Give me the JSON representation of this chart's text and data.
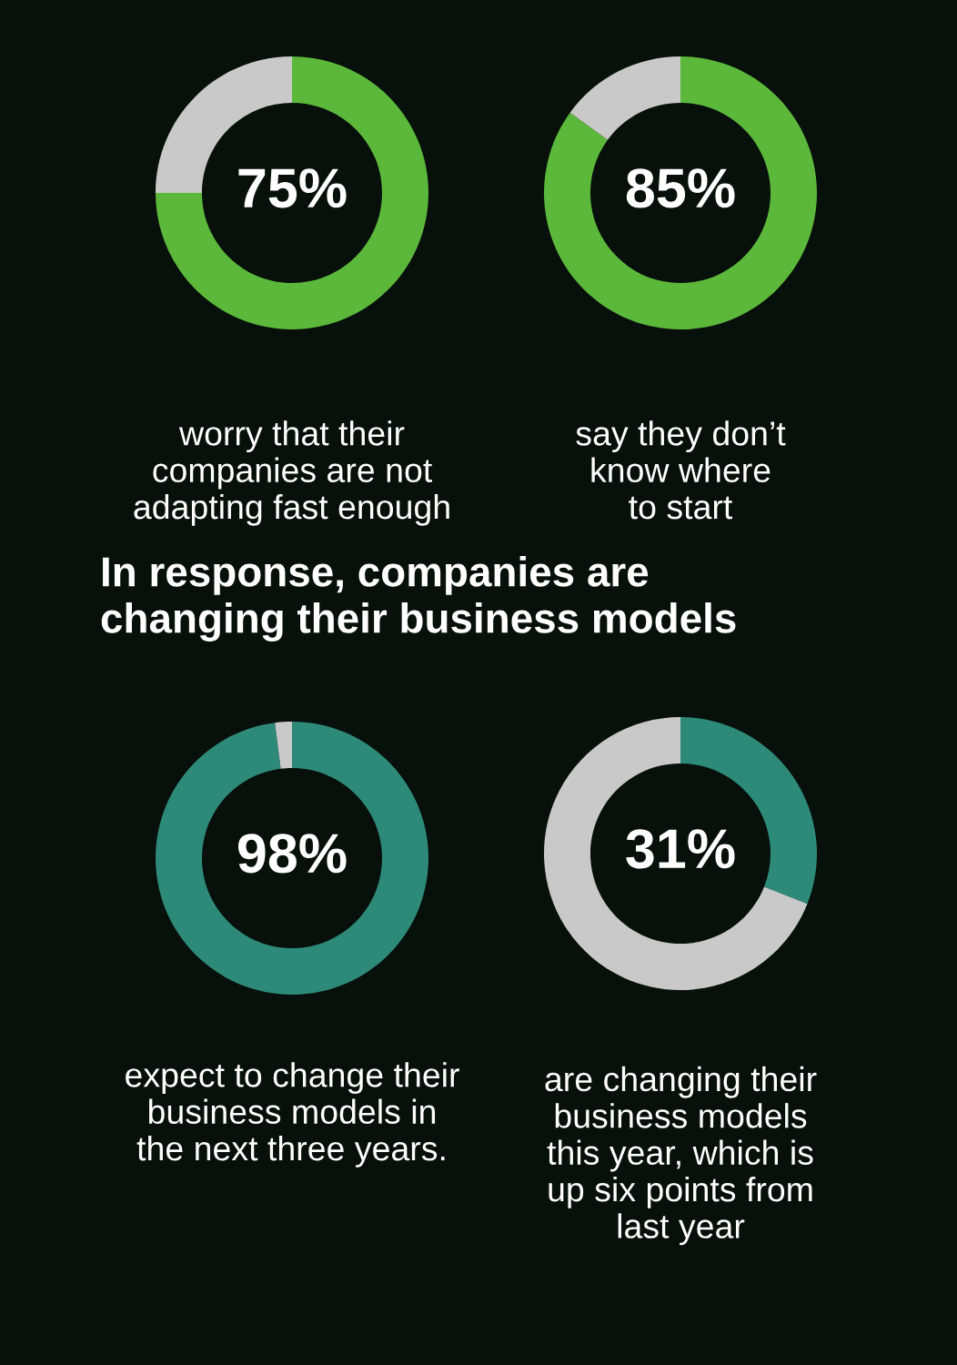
{
  "chart_data": [
    {
      "type": "donut",
      "categories": [
        null,
        null
      ],
      "values": [
        75,
        25
      ],
      "colors": [
        "#5cb83a",
        "#c9c9c9"
      ],
      "value_labels": [
        "75%",
        null
      ],
      "annotations": [
        "worry that their\ncompanies are not\nadapting fast enough"
      ]
    },
    {
      "type": "donut",
      "categories": [
        null,
        null
      ],
      "values": [
        85,
        15
      ],
      "colors": [
        "#5cb83a",
        "#c9c9c9"
      ],
      "value_labels": [
        "85%",
        null
      ],
      "annotations": [
        "say they don’t\nknow where\nto start"
      ]
    },
    {
      "type": "other",
      "title": "In response, companies are\nchanging their business models"
    },
    {
      "type": "donut",
      "categories": [
        null,
        null
      ],
      "values": [
        98,
        2
      ],
      "colors": [
        "#2e8a78",
        "#c9c9c9"
      ],
      "value_labels": [
        "98%",
        null
      ],
      "annotations": [
        "expect to change their\nbusiness models in\nthe next three years."
      ]
    },
    {
      "type": "donut",
      "categories": [
        null,
        null
      ],
      "values": [
        31,
        69
      ],
      "colors": [
        "#2e8a78",
        "#c9c9c9"
      ],
      "value_labels": [
        "31%",
        null
      ],
      "annotations": [
        "are changing their\nbusiness models\nthis year, which is\nup six points from\nlast year"
      ]
    }
  ]
}
